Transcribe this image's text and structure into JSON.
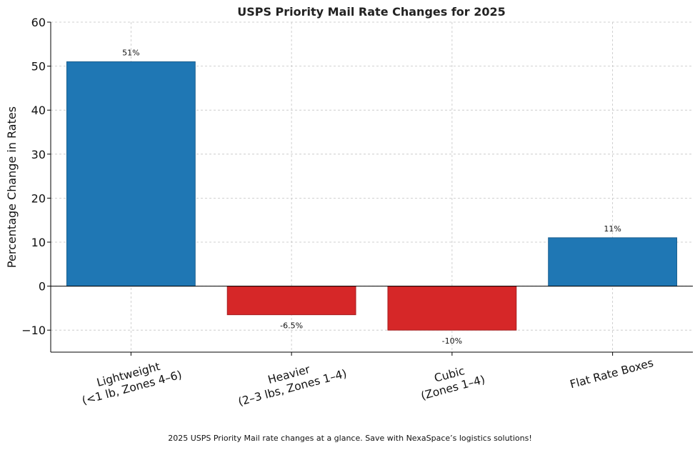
{
  "chart_data": {
    "type": "bar",
    "title": "USPS Priority Mail Rate Changes for 2025",
    "xlabel": "",
    "ylabel": "Percentage Change in Rates",
    "ylim": [
      -15,
      60
    ],
    "yticks": [
      -10,
      0,
      10,
      20,
      30,
      40,
      50,
      60
    ],
    "ytick_labels": [
      "−10",
      "0",
      "10",
      "20",
      "30",
      "40",
      "50",
      "60"
    ],
    "categories": [
      [
        "Lightweight",
        "(<1 lb, Zones 4–6)"
      ],
      [
        "Heavier",
        "(2–3 lbs, Zones 1–4)"
      ],
      [
        "Cubic",
        "(Zones 1–4)"
      ],
      [
        "Flat Rate Boxes"
      ]
    ],
    "values": [
      51,
      -6.5,
      -10,
      11
    ],
    "data_labels": [
      "51%",
      "-6.5%",
      "-10%",
      "11%"
    ],
    "colors": {
      "positive": "#1f77b4",
      "negative": "#d62728",
      "positive_edge": "#1a5f8f",
      "negative_edge": "#a61e1f",
      "grid": "#c4c4c4",
      "axis": "#000000"
    },
    "grid": true
  },
  "caption": "2025 USPS Priority Mail rate changes at a glance. Save with NexaSpace’s logistics solutions!"
}
